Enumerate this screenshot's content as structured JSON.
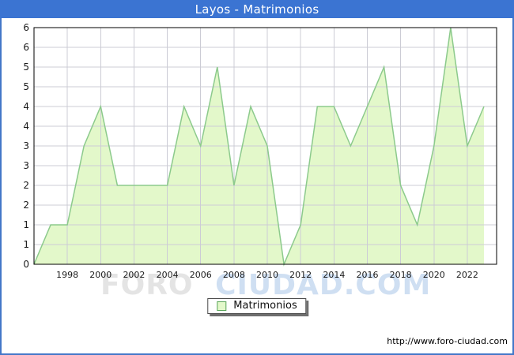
{
  "chart_data": {
    "type": "area",
    "title": "Layos - Matrimonios",
    "xlabel": "",
    "ylabel": "",
    "x": [
      1996,
      1997,
      1998,
      1999,
      2000,
      2001,
      2002,
      2003,
      2004,
      2005,
      2006,
      2007,
      2008,
      2009,
      2010,
      2011,
      2012,
      2013,
      2014,
      2015,
      2016,
      2017,
      2018,
      2019,
      2020,
      2021,
      2022,
      2023
    ],
    "series": [
      {
        "name": "Matrimonios",
        "values": [
          0,
          1,
          1,
          3,
          4,
          2,
          2,
          2,
          2,
          4,
          3,
          5,
          2,
          4,
          3,
          0,
          1,
          4,
          4,
          3,
          4,
          5,
          2,
          1,
          3,
          6,
          3,
          4
        ]
      }
    ],
    "xlim": [
      1996,
      2023
    ],
    "ylim": [
      0,
      6
    ],
    "grid": true,
    "legend_position": "bottom-center",
    "x_tick_labels": [
      "1998",
      "2000",
      "2002",
      "2004",
      "2006",
      "2008",
      "2010",
      "2012",
      "2014",
      "2016",
      "2018",
      "2020",
      "2022"
    ],
    "y_tick_step": 0.5,
    "y_tick_labels": [
      "0",
      "1",
      "1",
      "2",
      "2",
      "3",
      "3",
      "4",
      "4",
      "5",
      "5",
      "6",
      "6"
    ],
    "colors": {
      "titlebar_bg": "#3b74d2",
      "titlebar_text": "#ffffff",
      "outer_border": "#4377c8",
      "area_fill": "#e3f8ca",
      "area_stroke": "#8cca8c",
      "grid": "#ccccd5",
      "plot_border": "#000000",
      "tick_text": "#1a1a1a"
    }
  },
  "watermark": {
    "part1": "FORO",
    "part2": "CIUDAD.COM"
  },
  "legend": {
    "label": "Matrimonios"
  },
  "footer": {
    "url": "http://www.foro-ciudad.com"
  }
}
